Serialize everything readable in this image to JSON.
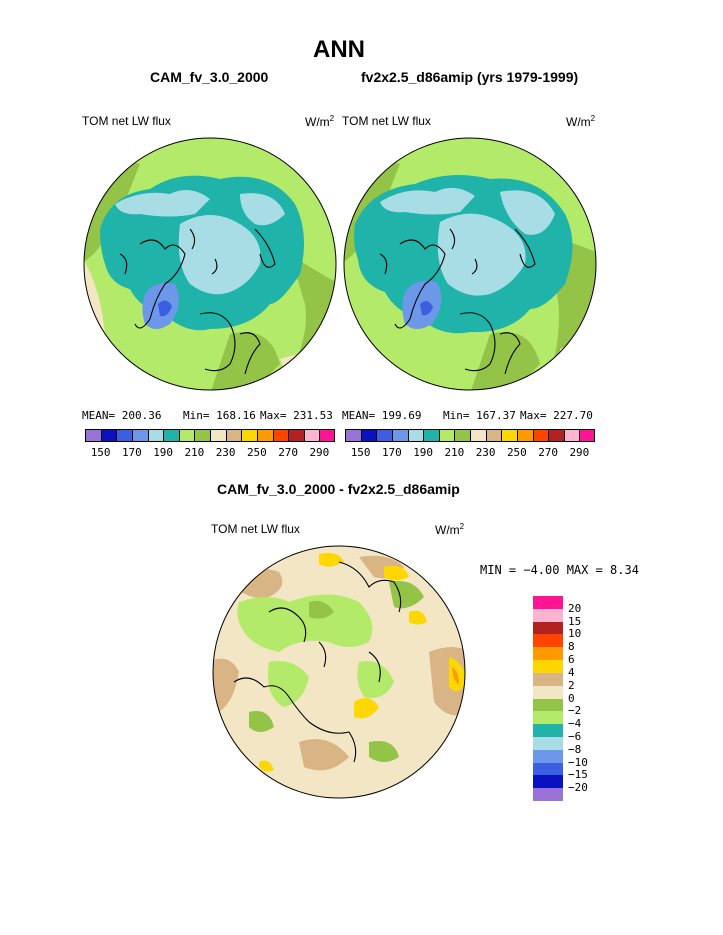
{
  "title": "ANN",
  "panels": [
    {
      "case": "CAM_fv_3.0_2000",
      "field": "TOM net LW flux",
      "units": "W/m",
      "sup": "2",
      "mean": "MEAN= 200.36",
      "min": "Min= 168.16",
      "max": "Max= 231.53"
    },
    {
      "case": "fv2x2.5_d86amip (yrs 1979-1999)",
      "field": "TOM net LW flux",
      "units": "W/m",
      "sup": "2",
      "mean": "MEAN= 199.69",
      "min": "Min= 167.37",
      "max": "Max= 227.70"
    }
  ],
  "diff": {
    "case": "CAM_fv_3.0_2000 - fv2x2.5_d86amip",
    "field": "TOM net LW flux",
    "units": "W/m",
    "sup": "2",
    "minmax": "MIN =  −4.00 MAX =    8.34"
  },
  "colorbar_top": {
    "colors": [
      "#9a73d8",
      "#0a12c0",
      "#3b5fe0",
      "#6d97e8",
      "#a8dde6",
      "#1fb3a9",
      "#b4ea6a",
      "#93c448",
      "#f2e6c4",
      "#d9b485",
      "#ffd700",
      "#ff9a00",
      "#ff4400",
      "#b22222",
      "#ffb3d1",
      "#ff1493"
    ],
    "labels": [
      "150",
      "170",
      "190",
      "210",
      "230",
      "250",
      "270",
      "290"
    ]
  },
  "colorbar_diff": {
    "colors": [
      "#ff1493",
      "#ffb3d1",
      "#b22222",
      "#ff4400",
      "#ff9a00",
      "#ffd700",
      "#d9b485",
      "#f2e6c4",
      "#93c448",
      "#b4ea6a",
      "#1fb3a9",
      "#a8dde6",
      "#6d97e8",
      "#3b5fe0",
      "#0a12c0",
      "#9a73d8"
    ],
    "labels": [
      "20",
      "15",
      "10",
      "8",
      "6",
      "4",
      "2",
      "0",
      "−2",
      "−4",
      "−6",
      "−8",
      "−10",
      "−15",
      "−20"
    ]
  }
}
